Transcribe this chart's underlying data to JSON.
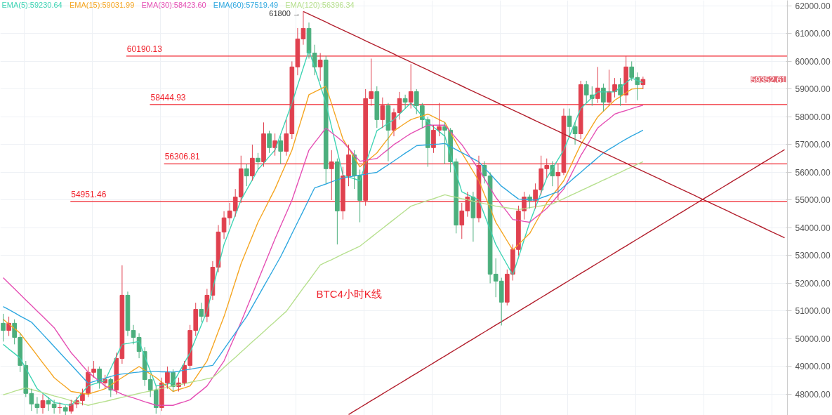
{
  "chart_data": {
    "type": "candlestick",
    "categories": [
      null,
      null,
      null,
      null,
      null,
      null,
      null,
      null,
      null,
      null,
      null,
      null,
      null,
      null,
      null,
      null,
      null,
      null,
      null,
      null,
      null,
      null,
      null,
      null,
      null,
      null,
      null,
      null,
      null,
      null,
      null,
      null,
      null,
      null,
      null,
      null,
      null,
      null,
      null,
      null,
      null,
      null,
      null,
      null,
      null,
      null,
      null,
      null,
      null,
      null,
      null,
      null,
      null,
      null,
      null,
      null,
      null,
      null,
      null,
      null,
      null,
      null,
      null,
      null,
      null,
      null,
      null,
      null,
      null,
      null,
      null,
      null,
      null,
      null,
      null,
      null,
      null,
      null,
      null,
      null,
      null,
      null,
      null,
      null,
      null,
      null,
      null,
      null,
      null,
      null,
      null,
      null,
      null,
      null,
      null,
      null,
      null,
      null,
      null,
      null,
      null,
      null,
      null,
      null,
      null,
      null,
      null,
      null,
      null,
      null,
      null,
      null,
      null,
      null,
      null,
      null,
      null,
      null,
      null,
      null,
      null,
      null,
      null,
      null,
      null,
      null,
      null,
      null,
      null,
      null,
      null,
      null,
      null,
      null,
      null,
      null,
      null,
      null,
      null
    ],
    "ohlc": [
      [
        50560,
        50900,
        49900,
        50300
      ],
      [
        50300,
        50800,
        50100,
        50560
      ],
      [
        50560,
        50700,
        49800,
        50050
      ],
      [
        50050,
        50200,
        48800,
        49040
      ],
      [
        49040,
        49200,
        47900,
        48030
      ],
      [
        48030,
        48200,
        47400,
        47650
      ],
      [
        47650,
        47900,
        47300,
        47520
      ],
      [
        47520,
        48000,
        47300,
        47770
      ],
      [
        47770,
        47900,
        47400,
        47650
      ],
      [
        47650,
        47800,
        47300,
        47520
      ],
      [
        47520,
        47700,
        47300,
        47520
      ],
      [
        47520,
        47600,
        47250,
        47390
      ],
      [
        47390,
        47800,
        47300,
        47650
      ],
      [
        47650,
        47900,
        47500,
        47770
      ],
      [
        47770,
        48200,
        47600,
        48030
      ],
      [
        48030,
        49000,
        47900,
        48790
      ],
      [
        48790,
        49200,
        48600,
        48910
      ],
      [
        48910,
        49000,
        48200,
        48410
      ],
      [
        48410,
        48700,
        48200,
        48530
      ],
      [
        48530,
        48600,
        47900,
        48150
      ],
      [
        48150,
        49500,
        48000,
        49290
      ],
      [
        49290,
        52650,
        49100,
        51570
      ],
      [
        51570,
        51700,
        50100,
        50300
      ],
      [
        50300,
        50500,
        49800,
        50050
      ],
      [
        50050,
        50200,
        49300,
        49540
      ],
      [
        49540,
        49700,
        48300,
        48530
      ],
      [
        48530,
        48700,
        47900,
        48150
      ],
      [
        48150,
        48300,
        47300,
        47520
      ],
      [
        47520,
        48600,
        47400,
        48410
      ],
      [
        48410,
        49000,
        48200,
        48790
      ],
      [
        48790,
        48900,
        48100,
        48280
      ],
      [
        48280,
        48600,
        48100,
        48410
      ],
      [
        48410,
        49200,
        48300,
        49040
      ],
      [
        49040,
        50500,
        48900,
        50300
      ],
      [
        50300,
        51300,
        50100,
        51060
      ],
      [
        51060,
        51300,
        50600,
        50810
      ],
      [
        50810,
        51800,
        50600,
        51570
      ],
      [
        51570,
        52800,
        51400,
        52580
      ],
      [
        52580,
        54100,
        52400,
        53850
      ],
      [
        53850,
        54600,
        53600,
        54360
      ],
      [
        54360,
        54900,
        54100,
        54610
      ],
      [
        54610,
        55400,
        54400,
        55110
      ],
      [
        55110,
        56600,
        54900,
        56130
      ],
      [
        56130,
        56300,
        55500,
        55870
      ],
      [
        55870,
        57000,
        55700,
        56510
      ],
      [
        56510,
        56700,
        56100,
        56380
      ],
      [
        56380,
        57800,
        56200,
        57390
      ],
      [
        57390,
        57500,
        56700,
        56890
      ],
      [
        56890,
        57400,
        56600,
        57140
      ],
      [
        57140,
        57300,
        56300,
        56760
      ],
      [
        56760,
        57900,
        56600,
        57390
      ],
      [
        57390,
        60000,
        57200,
        59800
      ],
      [
        59800,
        61200,
        59500,
        60810
      ],
      [
        60810,
        61800,
        60600,
        61190
      ],
      [
        61190,
        61400,
        60100,
        60300
      ],
      [
        60300,
        60600,
        59500,
        59800
      ],
      [
        59800,
        60300,
        59300,
        60050
      ],
      [
        60050,
        60200,
        55600,
        56130
      ],
      [
        56130,
        56800,
        55000,
        56380
      ],
      [
        56380,
        56500,
        53400,
        54610
      ],
      [
        54610,
        56200,
        54300,
        55870
      ],
      [
        55870,
        57000,
        55500,
        56630
      ],
      [
        56630,
        56800,
        55400,
        55870
      ],
      [
        55870,
        56100,
        54200,
        54990
      ],
      [
        54990,
        59000,
        54800,
        58660
      ],
      [
        58660,
        60100,
        58400,
        58910
      ],
      [
        58910,
        59100,
        57600,
        57900
      ],
      [
        57900,
        58700,
        57600,
        58400
      ],
      [
        58400,
        58500,
        56400,
        57520
      ],
      [
        57520,
        58300,
        57300,
        58150
      ],
      [
        58150,
        58900,
        57900,
        58660
      ],
      [
        58660,
        58800,
        58300,
        58530
      ],
      [
        58530,
        59900,
        58300,
        58910
      ],
      [
        58910,
        59000,
        58100,
        58400
      ],
      [
        58400,
        58500,
        57600,
        57900
      ],
      [
        57900,
        58000,
        56200,
        56890
      ],
      [
        56890,
        57700,
        56700,
        57520
      ],
      [
        57520,
        58500,
        57300,
        57650
      ],
      [
        57650,
        57800,
        56300,
        57520
      ],
      [
        57520,
        57600,
        56000,
        56380
      ],
      [
        56380,
        56500,
        53800,
        54100
      ],
      [
        54100,
        54900,
        53600,
        54610
      ],
      [
        54610,
        55300,
        54400,
        55110
      ],
      [
        55110,
        55300,
        53500,
        54360
      ],
      [
        54360,
        56600,
        54200,
        56250
      ],
      [
        56250,
        56400,
        55600,
        55870
      ],
      [
        55870,
        56000,
        52000,
        52330
      ],
      [
        52330,
        52900,
        51500,
        52080
      ],
      [
        52080,
        52200,
        50480,
        51320
      ],
      [
        51320,
        52500,
        51200,
        52330
      ],
      [
        52330,
        53400,
        52100,
        53220
      ],
      [
        53220,
        54800,
        53000,
        54610
      ],
      [
        54610,
        55300,
        54300,
        55110
      ],
      [
        55110,
        55200,
        54700,
        54990
      ],
      [
        54990,
        55600,
        54700,
        55370
      ],
      [
        55370,
        56600,
        55200,
        56130
      ],
      [
        56130,
        56500,
        55800,
        56250
      ],
      [
        56250,
        56400,
        55500,
        55870
      ],
      [
        55870,
        56300,
        55000,
        56000
      ],
      [
        56000,
        58300,
        55900,
        58030
      ],
      [
        58030,
        58300,
        57300,
        57650
      ],
      [
        57650,
        57800,
        57000,
        57390
      ],
      [
        57390,
        59300,
        57200,
        59160
      ],
      [
        59160,
        59300,
        58500,
        58790
      ],
      [
        58790,
        59100,
        58400,
        58660
      ],
      [
        58660,
        59800,
        58500,
        59040
      ],
      [
        59040,
        59200,
        58200,
        58530
      ],
      [
        58530,
        59700,
        58400,
        58910
      ],
      [
        58910,
        59400,
        58700,
        59160
      ],
      [
        59160,
        59400,
        58400,
        58790
      ],
      [
        58790,
        60190,
        58500,
        59800
      ],
      [
        59800,
        60000,
        59300,
        59420
      ],
      [
        59420,
        59600,
        58600,
        59160
      ],
      [
        59160,
        59450,
        59000,
        59350
      ],
      null,
      null,
      null,
      null,
      null,
      null,
      null,
      null,
      null,
      null,
      null,
      null,
      null,
      null,
      null,
      null,
      null,
      null,
      null,
      null,
      null,
      null,
      null,
      null,
      null
    ],
    "colors": [
      "#4caf7d",
      "#e0414f",
      "#4caf7d",
      "#4caf7d",
      "#4caf7d",
      "#4caf7d",
      "#4caf7d",
      "#e0414f",
      "#4caf7d",
      "#4caf7d",
      "#e0414f",
      "#4caf7d",
      "#e0414f",
      "#e0414f",
      "#e0414f",
      "#e0414f",
      "#e0414f",
      "#4caf7d",
      "#e0414f",
      "#4caf7d",
      "#e0414f",
      "#e0414f",
      "#4caf7d",
      "#4caf7d",
      "#4caf7d",
      "#4caf7d",
      "#4caf7d",
      "#4caf7d",
      "#e0414f",
      "#e0414f",
      "#4caf7d",
      "#e0414f",
      "#e0414f",
      "#e0414f",
      "#e0414f",
      "#4caf7d",
      "#e0414f",
      "#e0414f",
      "#e0414f",
      "#e0414f",
      "#e0414f",
      "#e0414f",
      "#e0414f",
      "#4caf7d",
      "#e0414f",
      "#4caf7d",
      "#e0414f",
      "#4caf7d",
      "#e0414f",
      "#4caf7d",
      "#e0414f",
      "#e0414f",
      "#e0414f",
      "#e0414f",
      "#4caf7d",
      "#4caf7d",
      "#e0414f",
      "#4caf7d",
      "#e0414f",
      "#4caf7d",
      "#e0414f",
      "#e0414f",
      "#4caf7d",
      "#4caf7d",
      "#e0414f",
      "#e0414f",
      "#4caf7d",
      "#e0414f",
      "#4caf7d",
      "#e0414f",
      "#e0414f",
      "#4caf7d",
      "#e0414f",
      "#4caf7d",
      "#4caf7d",
      "#4caf7d",
      "#e0414f",
      "#e0414f",
      "#4caf7d",
      "#4caf7d",
      "#4caf7d",
      "#e0414f",
      "#e0414f",
      "#4caf7d",
      "#e0414f",
      "#4caf7d",
      "#4caf7d",
      "#4caf7d",
      "#4caf7d",
      "#e0414f",
      "#e0414f",
      "#e0414f",
      "#e0414f",
      "#4caf7d",
      "#e0414f",
      "#e0414f",
      "#e0414f",
      "#4caf7d",
      "#e0414f",
      "#e0414f",
      "#4caf7d",
      "#4caf7d",
      "#e0414f",
      "#4caf7d",
      "#4caf7d",
      "#e0414f",
      "#4caf7d",
      "#e0414f",
      "#e0414f",
      "#4caf7d",
      "#e0414f",
      "#4caf7d",
      "#4caf7d",
      "#e0414f",
      null,
      null,
      null,
      null,
      null,
      null,
      null,
      null,
      null,
      null,
      null,
      null,
      null,
      null,
      null,
      null,
      null,
      null,
      null,
      null,
      null,
      null,
      null,
      null,
      null
    ],
    "series": [
      {
        "type": "line",
        "name": "EMA(5):59230.64",
        "color": "#3fd4b4",
        "values": [
          49800,
          49630,
          49470,
          49300,
          48930,
          48570,
          48200,
          48030,
          47870,
          47700,
          47670,
          47630,
          47600,
          47830,
          48070,
          48300,
          48370,
          48430,
          48500,
          48930,
          49370,
          49800,
          49830,
          49870,
          49900,
          49370,
          48830,
          48300,
          48330,
          48370,
          48400,
          48770,
          49130,
          49500,
          50000,
          50500,
          51000,
          51800,
          52600,
          53400,
          53930,
          54470,
          55000,
          55370,
          55730,
          56100,
          56330,
          56570,
          56800,
          57370,
          57930,
          58500,
          59130,
          59770,
          60400,
          59770,
          59130,
          58500,
          57630,
          56770,
          55900,
          55830,
          55770,
          55700,
          56300,
          56900,
          57500,
          57630,
          57770,
          57900,
          58100,
          58300,
          58500,
          58270,
          58030,
          57800,
          57630,
          57470,
          57300,
          56630,
          55970,
          55300,
          55200,
          55100,
          55000,
          54470,
          53930,
          53400,
          53030,
          52670,
          52300,
          52930,
          53570,
          54200,
          54730,
          55270,
          55800,
          56130,
          56470,
          56800,
          57300,
          57800,
          58300,
          58500,
          58700,
          58900,
          58900,
          58900,
          58900,
          59070,
          59230,
          59400,
          59310,
          59230,
          null,
          null,
          null,
          null,
          null,
          null,
          null,
          null,
          null,
          null,
          null,
          null,
          null,
          null,
          null,
          null,
          null,
          null,
          null,
          null,
          null,
          null,
          null,
          null,
          null
        ]
      },
      {
        "type": "line",
        "name": "EMA(15):59031.99",
        "color": "#f5a623",
        "values": [
          50700,
          50530,
          50370,
          50200,
          49930,
          49670,
          49400,
          49130,
          48870,
          48600,
          48430,
          48270,
          48100,
          48070,
          48030,
          48000,
          48070,
          48130,
          48200,
          48330,
          48470,
          48600,
          48730,
          48870,
          49000,
          48870,
          48730,
          48600,
          48430,
          48270,
          48100,
          48170,
          48230,
          48300,
          48600,
          48900,
          49200,
          49730,
          50270,
          50800,
          51430,
          52070,
          52700,
          53200,
          53700,
          54200,
          54600,
          55000,
          55400,
          55870,
          56330,
          56800,
          57470,
          58130,
          58800,
          58900,
          59000,
          59100,
          58470,
          57830,
          57200,
          56870,
          56530,
          56200,
          56370,
          56530,
          56700,
          56970,
          57230,
          57500,
          57630,
          57770,
          57900,
          57970,
          58030,
          58100,
          58000,
          57900,
          57800,
          57430,
          57070,
          56700,
          56370,
          56030,
          55700,
          55200,
          54700,
          54200,
          53870,
          53530,
          53200,
          53400,
          53600,
          53800,
          54170,
          54530,
          54900,
          55170,
          55430,
          55700,
          56130,
          56570,
          57000,
          57330,
          57670,
          58000,
          58200,
          58400,
          58600,
          58730,
          58870,
          59000,
          59020,
          59030,
          null,
          null,
          null,
          null,
          null,
          null,
          null,
          null,
          null,
          null,
          null,
          null,
          null,
          null,
          null,
          null,
          null,
          null,
          null,
          null,
          null,
          null,
          null,
          null,
          null
        ]
      },
      {
        "type": "line",
        "name": "EMA(30):58423.60",
        "color": "#e54fb4",
        "values": [
          52200,
          52000,
          51800,
          51600,
          51400,
          51200,
          51000,
          50800,
          50600,
          50400,
          50100,
          49800,
          49500,
          49270,
          49030,
          48800,
          48630,
          48470,
          48300,
          48200,
          48100,
          48000,
          47930,
          47870,
          47800,
          47730,
          47670,
          47600,
          47600,
          47600,
          47600,
          47670,
          47730,
          47800,
          47970,
          48130,
          48300,
          48600,
          48900,
          49200,
          49670,
          50130,
          50600,
          51100,
          51600,
          52100,
          52600,
          53100,
          53600,
          54070,
          54530,
          55000,
          55600,
          56200,
          56800,
          57070,
          57330,
          57600,
          57430,
          57270,
          57100,
          56870,
          56630,
          56400,
          56430,
          56470,
          56500,
          56670,
          56830,
          57000,
          57130,
          57270,
          57400,
          57500,
          57600,
          57700,
          57700,
          57700,
          57700,
          57470,
          57230,
          57000,
          56700,
          56400,
          56100,
          55770,
          55430,
          55100,
          54830,
          54570,
          54300,
          54270,
          54230,
          54200,
          54370,
          54530,
          54700,
          54930,
          55170,
          55400,
          55800,
          56200,
          56600,
          56930,
          57270,
          57600,
          57770,
          57930,
          58100,
          58170,
          58230,
          58300,
          58360,
          58420,
          null,
          null,
          null,
          null,
          null,
          null,
          null,
          null,
          null,
          null,
          null,
          null,
          null,
          null,
          null,
          null,
          null,
          null,
          null,
          null,
          null,
          null,
          null,
          null,
          null
        ]
      },
      {
        "type": "line",
        "name": "EMA(60):57519.49",
        "color": "#2fa8e0",
        "values": [
          51160,
          51050,
          50940,
          50820,
          50710,
          50600,
          50380,
          50160,
          49940,
          49720,
          49500,
          49280,
          49060,
          48840,
          48620,
          48400,
          48460,
          48520,
          48580,
          48640,
          48700,
          48730,
          48750,
          48780,
          48800,
          48830,
          48820,
          48820,
          48810,
          48810,
          48800,
          48830,
          48870,
          48900,
          48940,
          48970,
          49010,
          49040,
          49330,
          49630,
          49920,
          50210,
          50510,
          50800,
          51160,
          51520,
          51880,
          52240,
          52600,
          52960,
          53370,
          53790,
          54200,
          54610,
          55030,
          55440,
          55510,
          55580,
          55660,
          55730,
          55800,
          55830,
          55870,
          55900,
          55930,
          55970,
          56000,
          56140,
          56270,
          56410,
          56550,
          56690,
          56820,
          56960,
          56980,
          56990,
          57010,
          57020,
          57040,
          56930,
          56820,
          56710,
          56600,
          56490,
          56380,
          56160,
          55940,
          55720,
          55500,
          55350,
          55190,
          55040,
          55030,
          55010,
          55000,
          55080,
          55150,
          55230,
          55300,
          55480,
          55650,
          55830,
          56000,
          56180,
          56350,
          56530,
          56700,
          56830,
          56950,
          57080,
          57200,
          57310,
          57410,
          57520,
          null,
          null,
          null,
          null,
          null,
          null,
          null,
          null,
          null,
          null,
          null,
          null,
          null,
          null,
          null,
          null,
          null,
          null,
          null,
          null,
          null,
          null,
          null,
          null,
          null
        ]
      },
      {
        "type": "line",
        "name": "EMA(120):56396.34",
        "color": "#b7e08f",
        "values": [
          47980,
          48040,
          48110,
          48170,
          48230,
          48170,
          48120,
          48060,
          48000,
          47940,
          47890,
          47830,
          47770,
          47710,
          47660,
          47600,
          47650,
          47700,
          47740,
          47790,
          47840,
          47890,
          47940,
          47980,
          48030,
          48080,
          48120,
          48170,
          48210,
          48250,
          48300,
          48340,
          48380,
          48430,
          48470,
          48510,
          48560,
          48600,
          48780,
          48970,
          49150,
          49330,
          49520,
          49700,
          49890,
          50070,
          50250,
          50440,
          50620,
          50810,
          50990,
          51270,
          51550,
          51830,
          52100,
          52380,
          52660,
          52760,
          52850,
          52950,
          53050,
          53150,
          53240,
          53340,
          53500,
          53660,
          53820,
          53980,
          54140,
          54300,
          54460,
          54620,
          54780,
          54850,
          54920,
          54990,
          55050,
          55120,
          55190,
          55140,
          55100,
          55050,
          55010,
          54960,
          54920,
          54870,
          54830,
          54780,
          54750,
          54720,
          54690,
          54660,
          54690,
          54730,
          54760,
          54790,
          54830,
          54860,
          54960,
          55050,
          55150,
          55240,
          55340,
          55430,
          55530,
          55620,
          55720,
          55810,
          55910,
          56000,
          56100,
          56190,
          56290,
          56380,
          null,
          null,
          null,
          null,
          null,
          null,
          null,
          null,
          null,
          null,
          null,
          null,
          null,
          null,
          null,
          null,
          null,
          null,
          null,
          null,
          null,
          null,
          null,
          null,
          null
        ]
      },
      {
        "type": "line",
        "color": "#b3202e",
        "values": [
          null,
          null,
          null,
          null,
          null,
          null,
          null,
          null,
          null,
          null,
          null,
          null,
          null,
          null,
          null,
          null,
          null,
          null,
          null,
          null,
          null,
          null,
          null,
          null,
          null,
          null,
          null,
          null,
          null,
          null,
          null,
          null,
          null,
          null,
          null,
          null,
          null,
          null,
          null,
          null,
          null,
          null,
          null,
          null,
          null,
          null,
          null,
          null,
          null,
          null,
          null,
          null,
          null,
          61800,
          61704,
          61608,
          61512,
          61416,
          61320,
          61224,
          61128,
          61032,
          60936,
          60840,
          60744,
          60648,
          60552,
          60456,
          60360,
          60264,
          60168,
          60072,
          59976,
          59880,
          59784,
          59688,
          59592,
          59496,
          59400,
          59304,
          59208,
          59112,
          59016,
          58920,
          58824,
          58728,
          58632,
          58536,
          58440,
          58344,
          58248,
          58152,
          58056,
          57960,
          57864,
          57768,
          57672,
          57576,
          57480,
          57384,
          57288,
          57192,
          57096,
          57000,
          56904,
          56808,
          56712,
          56616,
          56520,
          56424,
          56328,
          56232,
          56136,
          56040,
          55944,
          55848,
          55752,
          55656,
          55560,
          55464,
          55368,
          55272,
          55176,
          55080,
          54984,
          54888,
          54792,
          54696,
          54600,
          54504,
          54408,
          54312,
          54216,
          54120,
          54024,
          53928,
          53832,
          53736,
          53640
        ]
      },
      {
        "type": "line",
        "color": "#b3202e",
        "values": [
          null,
          null,
          null,
          null,
          null,
          null,
          null,
          null,
          null,
          null,
          null,
          null,
          null,
          null,
          null,
          null,
          null,
          null,
          null,
          null,
          null,
          null,
          null,
          null,
          null,
          null,
          null,
          null,
          null,
          null,
          null,
          null,
          null,
          null,
          null,
          null,
          null,
          null,
          null,
          null,
          null,
          null,
          null,
          null,
          null,
          null,
          null,
          null,
          null,
          null,
          null,
          null,
          null,
          null,
          null,
          null,
          null,
          null,
          null,
          null,
          null,
          47270,
          47394,
          47518,
          47642,
          47766,
          47890,
          48014,
          48138,
          48262,
          48386,
          48510,
          48634,
          48758,
          48882,
          49006,
          49130,
          49254,
          49378,
          49502,
          49626,
          49750,
          49874,
          49998,
          50122,
          50246,
          50370,
          50494,
          50618,
          50742,
          50866,
          50990,
          51114,
          51238,
          51362,
          51486,
          51610,
          51734,
          51858,
          51982,
          52106,
          52230,
          52354,
          52478,
          52602,
          52726,
          52850,
          52974,
          53098,
          53222,
          53346,
          53470,
          53594,
          53718,
          53842,
          53966,
          54090,
          54214,
          54338,
          54462,
          54586,
          54710,
          54834,
          54958,
          55082,
          55206,
          55330,
          55454,
          55578,
          55702,
          55826,
          55950,
          56074,
          56198,
          56322,
          56446,
          56570,
          56694,
          56818
        ]
      }
    ],
    "ref_lines": [
      {
        "axis": "y",
        "value": 60190.13,
        "label": "60190.13",
        "color": "#f0232d"
      },
      {
        "axis": "y",
        "value": 58444.93,
        "label": "58444.93",
        "color": "#f0232d"
      },
      {
        "axis": "y",
        "value": 56306.81,
        "label": "56306.81",
        "color": "#f0232d"
      },
      {
        "axis": "y",
        "value": 54951.46,
        "label": "54951.46",
        "color": "#f0232d"
      }
    ],
    "annotations": [
      "61800 →",
      "59352.61",
      "BTC4小时K线"
    ],
    "ylim": [
      47240,
      62200
    ],
    "yticks": [
      {
        "value": 48000,
        "label": "48000.00"
      },
      {
        "value": 49000,
        "label": "49000.00"
      },
      {
        "value": 50000,
        "label": "50000.00"
      },
      {
        "value": 51000,
        "label": "51000.00"
      },
      {
        "value": 52000,
        "label": "52000.00"
      },
      {
        "value": 53000,
        "label": "53000.00"
      },
      {
        "value": 54000,
        "label": "54000.00"
      },
      {
        "value": 55000,
        "label": "55000.00"
      },
      {
        "value": 56000,
        "label": "56000.00"
      },
      {
        "value": 57000,
        "label": "57000.00"
      },
      {
        "value": 58000,
        "label": "58000.00"
      },
      {
        "value": 59000,
        "label": "59000.00"
      },
      {
        "value": 60000,
        "label": "60000.00"
      },
      {
        "value": 61000,
        "label": "61000.00"
      },
      {
        "value": 62000,
        "label": "62000.00"
      }
    ],
    "tick_labels": "y",
    "grid": true
  }
}
